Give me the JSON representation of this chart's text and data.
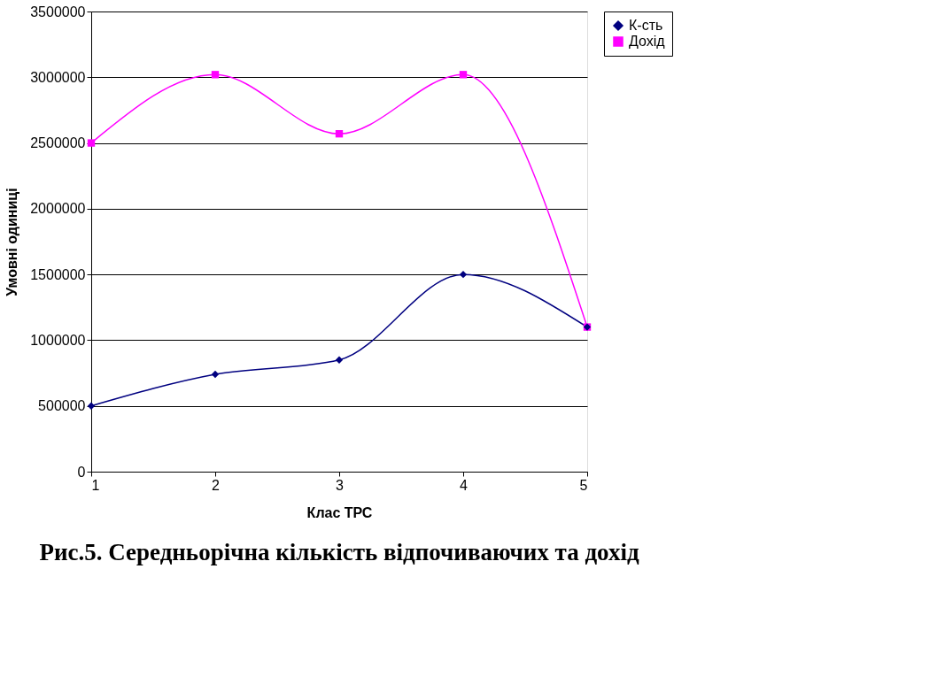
{
  "chart_data": {
    "type": "line",
    "title": "Рис.5. Середньорічна кількість відпочиваючих та дохід",
    "xlabel": "Клас ТРС",
    "ylabel": "Умовні одиниці",
    "x": [
      1,
      2,
      3,
      4,
      5
    ],
    "series": [
      {
        "name": "К-сть",
        "color": "#000080",
        "marker": "diamond",
        "values": [
          500000,
          740000,
          850000,
          1500000,
          1100000
        ]
      },
      {
        "name": "Дохід",
        "color": "#ff00ff",
        "marker": "square",
        "values": [
          2500000,
          3020000,
          2570000,
          3020000,
          1100000
        ]
      }
    ],
    "xlim": [
      1,
      5
    ],
    "xticks": [
      1,
      2,
      3,
      4,
      5
    ],
    "ylim": [
      0,
      3500000
    ],
    "yticks": [
      0,
      500000,
      1000000,
      1500000,
      2000000,
      2500000,
      3000000,
      3500000
    ],
    "grid": "y",
    "legend": "right",
    "line_style": "solid"
  }
}
